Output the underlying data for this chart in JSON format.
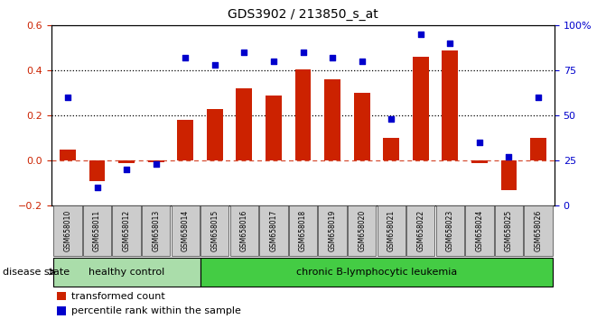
{
  "title": "GDS3902 / 213850_s_at",
  "samples": [
    "GSM658010",
    "GSM658011",
    "GSM658012",
    "GSM658013",
    "GSM658014",
    "GSM658015",
    "GSM658016",
    "GSM658017",
    "GSM658018",
    "GSM658019",
    "GSM658020",
    "GSM658021",
    "GSM658022",
    "GSM658023",
    "GSM658024",
    "GSM658025",
    "GSM658026"
  ],
  "bar_values": [
    0.05,
    -0.09,
    -0.01,
    -0.005,
    0.18,
    0.23,
    0.32,
    0.29,
    0.405,
    0.36,
    0.3,
    0.1,
    0.46,
    0.49,
    -0.01,
    -0.13,
    0.1
  ],
  "dot_values_pct": [
    60,
    10,
    20,
    23,
    82,
    78,
    85,
    80,
    85,
    82,
    80,
    48,
    95,
    90,
    35,
    27,
    60
  ],
  "bar_color": "#CC2200",
  "dot_color": "#0000CC",
  "ylim_left": [
    -0.2,
    0.6
  ],
  "ylim_right": [
    0,
    100
  ],
  "yticks_left": [
    -0.2,
    0.0,
    0.2,
    0.4,
    0.6
  ],
  "yticks_right": [
    0,
    25,
    50,
    75,
    100
  ],
  "yticklabels_right": [
    "0",
    "25",
    "50",
    "75",
    "100%"
  ],
  "hline_y": [
    0.2,
    0.4
  ],
  "zero_line_y": 0.0,
  "healthy_control_count": 5,
  "group1_label": "healthy control",
  "group2_label": "chronic B-lymphocytic leukemia",
  "disease_state_label": "disease state",
  "legend1": "transformed count",
  "legend2": "percentile rank within the sample",
  "bg_color": "#FFFFFF",
  "plot_bg_color": "#FFFFFF",
  "bar_width": 0.55,
  "group1_color": "#AADDAA",
  "group2_color": "#44CC44",
  "tick_label_color_left": "#CC2200",
  "tick_label_color_right": "#0000CC",
  "label_box_color": "#CCCCCC",
  "label_box_edge_color": "#888888"
}
